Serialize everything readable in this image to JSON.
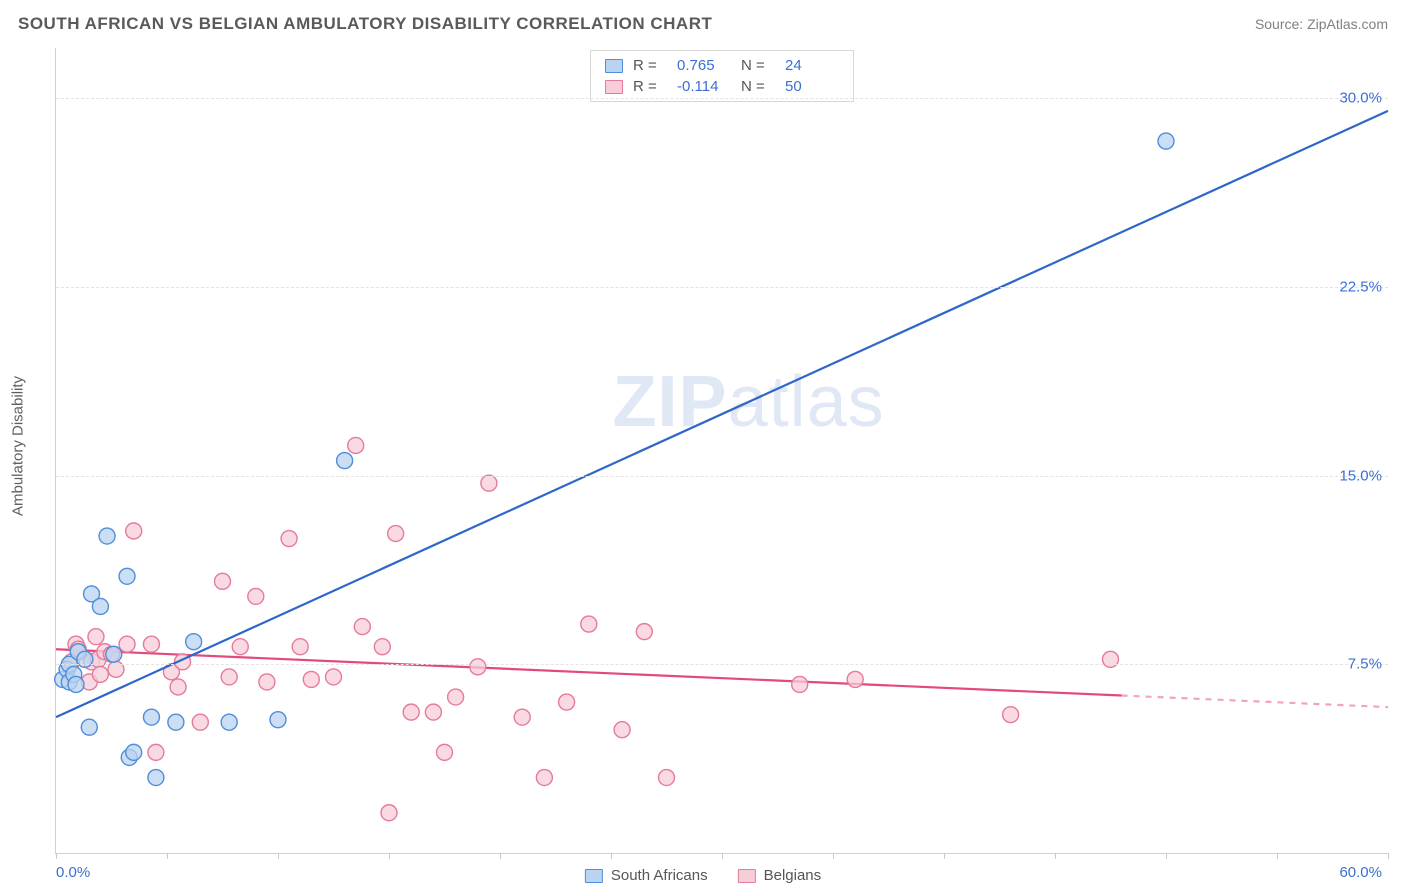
{
  "header": {
    "title": "SOUTH AFRICAN VS BELGIAN AMBULATORY DISABILITY CORRELATION CHART",
    "source": "Source: ZipAtlas.com"
  },
  "watermark": {
    "bold": "ZIP",
    "rest": "atlas"
  },
  "y_axis_title": "Ambulatory Disability",
  "chart": {
    "type": "scatter-with-trend",
    "background_color": "#ffffff",
    "grid_color": "#e3e3e3",
    "axis_color": "#d0d0d0",
    "xlim": [
      0,
      60
    ],
    "ylim": [
      0,
      32
    ],
    "xtick_step": 5,
    "yticks": [
      7.5,
      15.0,
      22.5,
      30.0
    ],
    "ytick_labels": [
      "7.5%",
      "15.0%",
      "22.5%",
      "30.0%"
    ],
    "x_min_label": "0.0%",
    "x_max_label": "60.0%",
    "tick_label_color": "#3b6fd6",
    "marker_radius": 8,
    "marker_stroke_width": 1.4,
    "trend_line_width": 2.2
  },
  "series": {
    "south_africans": {
      "label": "South Africans",
      "fill_color": "#b9d3f0",
      "stroke_color": "#4f8edb",
      "trend": {
        "x1": 0,
        "y1": 5.4,
        "x2": 60,
        "y2": 29.5,
        "color": "#2f66c9",
        "dash_from_x": null
      },
      "points": [
        [
          0.3,
          6.9
        ],
        [
          0.5,
          7.3
        ],
        [
          0.6,
          7.5
        ],
        [
          0.6,
          6.8
        ],
        [
          0.8,
          7.1
        ],
        [
          0.9,
          6.7
        ],
        [
          1.0,
          8.0
        ],
        [
          1.3,
          7.7
        ],
        [
          1.5,
          5.0
        ],
        [
          1.6,
          10.3
        ],
        [
          2.0,
          9.8
        ],
        [
          2.3,
          12.6
        ],
        [
          2.6,
          7.9
        ],
        [
          3.2,
          11.0
        ],
        [
          3.3,
          3.8
        ],
        [
          3.5,
          4.0
        ],
        [
          4.3,
          5.4
        ],
        [
          4.5,
          3.0
        ],
        [
          5.4,
          5.2
        ],
        [
          6.2,
          8.4
        ],
        [
          7.8,
          5.2
        ],
        [
          10.0,
          5.3
        ],
        [
          13.0,
          15.6
        ],
        [
          50.0,
          28.3
        ]
      ]
    },
    "belgians": {
      "label": "Belgians",
      "fill_color": "#f7cdd8",
      "stroke_color": "#e67a9a",
      "trend": {
        "x1": 0,
        "y1": 8.1,
        "x2": 60,
        "y2": 5.8,
        "color": "#e24a7c",
        "dash_from_x": 48
      },
      "points": [
        [
          0.7,
          7.6
        ],
        [
          0.9,
          8.3
        ],
        [
          1.0,
          8.1
        ],
        [
          1.5,
          6.8
        ],
        [
          1.6,
          7.6
        ],
        [
          1.8,
          8.6
        ],
        [
          1.9,
          7.7
        ],
        [
          2.0,
          7.1
        ],
        [
          2.2,
          8.0
        ],
        [
          2.5,
          7.9
        ],
        [
          2.7,
          7.3
        ],
        [
          3.2,
          8.3
        ],
        [
          3.5,
          12.8
        ],
        [
          4.3,
          8.3
        ],
        [
          4.5,
          4.0
        ],
        [
          5.2,
          7.2
        ],
        [
          5.5,
          6.6
        ],
        [
          5.7,
          7.6
        ],
        [
          6.5,
          5.2
        ],
        [
          7.5,
          10.8
        ],
        [
          7.8,
          7.0
        ],
        [
          8.3,
          8.2
        ],
        [
          9.0,
          10.2
        ],
        [
          9.5,
          6.8
        ],
        [
          10.5,
          12.5
        ],
        [
          11.0,
          8.2
        ],
        [
          11.5,
          6.9
        ],
        [
          12.5,
          7.0
        ],
        [
          13.5,
          16.2
        ],
        [
          13.8,
          9.0
        ],
        [
          14.7,
          8.2
        ],
        [
          15.0,
          1.6
        ],
        [
          15.3,
          12.7
        ],
        [
          16.0,
          5.6
        ],
        [
          17.0,
          5.6
        ],
        [
          17.5,
          4.0
        ],
        [
          18.0,
          6.2
        ],
        [
          19.0,
          7.4
        ],
        [
          19.5,
          14.7
        ],
        [
          21.0,
          5.4
        ],
        [
          22.0,
          3.0
        ],
        [
          23.0,
          6.0
        ],
        [
          24.0,
          9.1
        ],
        [
          25.5,
          4.9
        ],
        [
          26.5,
          8.8
        ],
        [
          27.5,
          3.0
        ],
        [
          33.5,
          6.7
        ],
        [
          36.0,
          6.9
        ],
        [
          43.0,
          5.5
        ],
        [
          47.5,
          7.7
        ]
      ]
    }
  },
  "top_legend": {
    "rows": [
      {
        "swatch": "south_africans",
        "r_label": "R =",
        "r_value": "0.765",
        "n_label": "N =",
        "n_value": "24"
      },
      {
        "swatch": "belgians",
        "r_label": "R =",
        "r_value": "-0.114",
        "n_label": "N =",
        "n_value": "50"
      }
    ]
  },
  "bottom_legend": [
    {
      "swatch": "south_africans",
      "label": "South Africans"
    },
    {
      "swatch": "belgians",
      "label": "Belgians"
    }
  ]
}
